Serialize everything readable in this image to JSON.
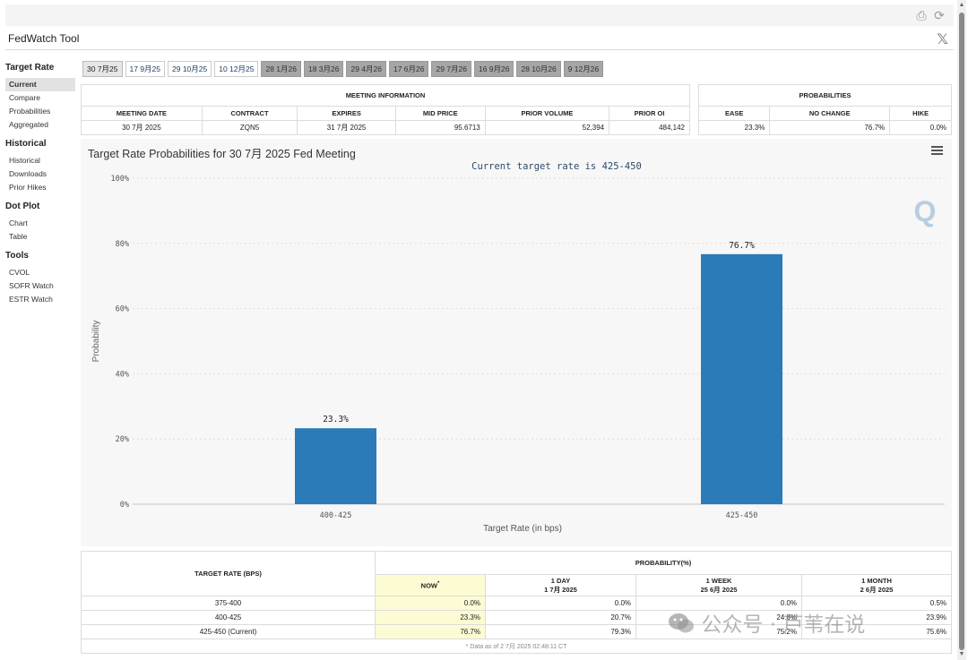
{
  "app": {
    "title": "FedWatch Tool"
  },
  "sidebar": {
    "groups": [
      {
        "heading": "Target Rate",
        "items": [
          "Current",
          "Compare",
          "Probabilities",
          "Aggregated"
        ]
      },
      {
        "heading": "Historical",
        "items": [
          "Historical",
          "Downloads",
          "Prior Hikes"
        ]
      },
      {
        "heading": "Dot Plot",
        "items": [
          "Chart",
          "Table"
        ]
      },
      {
        "heading": "Tools",
        "items": [
          "CVOL",
          "SOFR Watch",
          "ESTR Watch"
        ]
      }
    ]
  },
  "tabs": [
    {
      "label": "30 7月25",
      "state": "selected"
    },
    {
      "label": "17 9月25",
      "state": "white"
    },
    {
      "label": "29 10月25",
      "state": "white"
    },
    {
      "label": "10 12月25",
      "state": "white"
    },
    {
      "label": "28 1月26",
      "state": "gray"
    },
    {
      "label": "18 3月26",
      "state": "gray"
    },
    {
      "label": "29 4月26",
      "state": "gray"
    },
    {
      "label": "17 6月26",
      "state": "gray"
    },
    {
      "label": "29 7月26",
      "state": "gray"
    },
    {
      "label": "16 9月26",
      "state": "gray"
    },
    {
      "label": "28 10月26",
      "state": "gray"
    },
    {
      "label": "9 12月26",
      "state": "gray"
    }
  ],
  "meeting": {
    "heading": "MEETING INFORMATION",
    "headers": {
      "date": "MEETING DATE",
      "contract": "CONTRACT",
      "expires": "EXPIRES",
      "mid": "MID PRICE",
      "prior_volume": "PRIOR VOLUME",
      "prior_oi": "PRIOR OI"
    },
    "values": {
      "date": "30 7月 2025",
      "contract": "ZQN5",
      "expires": "31 7月 2025",
      "mid": "95.6713",
      "prior_volume": "52,394",
      "prior_oi": "484,142"
    }
  },
  "probabilities": {
    "heading": "PROBABILITIES",
    "headers": {
      "ease": "EASE",
      "no_change": "NO CHANGE",
      "hike": "HIKE"
    },
    "values": {
      "ease": "23.3%",
      "no_change": "76.7%",
      "hike": "0.0%"
    }
  },
  "chart_panel": {
    "title": "Target Rate Probabilities for 30 7月 2025 Fed Meeting",
    "subtitle": "Current target rate is 425-450"
  },
  "chart_data": {
    "type": "bar",
    "title": "Target Rate Probabilities for 30 7月 2025 Fed Meeting",
    "subtitle": "Current target rate is 425-450",
    "categories": [
      "400-425",
      "425-450"
    ],
    "values": [
      23.3,
      76.7
    ],
    "data_labels": [
      "23.3%",
      "76.7%"
    ],
    "xlabel": "Target Rate (in bps)",
    "ylabel": "Probability",
    "ylim": [
      0,
      100
    ],
    "yticks": [
      "0%",
      "20%",
      "40%",
      "60%",
      "80%",
      "100%"
    ],
    "grid": true,
    "bar_color": "#2b7bb9"
  },
  "bottom_table": {
    "target_header": "TARGET RATE (BPS)",
    "prob_header": "PROBABILITY(%)",
    "cols": [
      {
        "label": "NOW",
        "sup": "*",
        "sub": ""
      },
      {
        "label": "1 DAY",
        "sub": "1 7月 2025"
      },
      {
        "label": "1 WEEK",
        "sub": "25 6月 2025"
      },
      {
        "label": "1 MONTH",
        "sub": "2 6月 2025"
      }
    ],
    "rows": [
      {
        "rate": "375-400",
        "now": "0.0%",
        "day": "0.0%",
        "week": "0.0%",
        "month": "0.5%"
      },
      {
        "rate": "400-425",
        "now": "23.3%",
        "day": "20.7%",
        "week": "24.8%",
        "month": "23.9%"
      },
      {
        "rate": "425-450 (Current)",
        "now": "76.7%",
        "day": "79.3%",
        "week": "75.2%",
        "month": "75.6%"
      }
    ],
    "footnote": "* Data as of 2 7月 2025 02:48:11 CT"
  },
  "watermark": "公众号 · 芦苇在说",
  "logo_letter": "Q",
  "colors": {
    "accent": "#2b7bb9",
    "highlight": "#fdfbd3",
    "tab_gray": "#a6a6a6"
  }
}
